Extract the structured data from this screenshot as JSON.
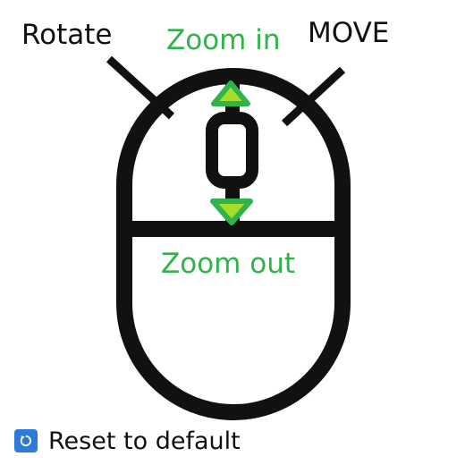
{
  "labels": {
    "rotate": "Rotate",
    "move": "MOVE",
    "zoom_in": "Zoom in",
    "zoom_out": "Zoom out"
  },
  "reset": {
    "label": "Reset to default",
    "icon": "reset-icon"
  },
  "colors": {
    "outline": "#111111",
    "zoom_text": "#2fb34a",
    "arrow_fill": "#a9dc2a",
    "arrow_stroke": "#2fb34a",
    "reset_icon_bg": "#2f79d8"
  }
}
